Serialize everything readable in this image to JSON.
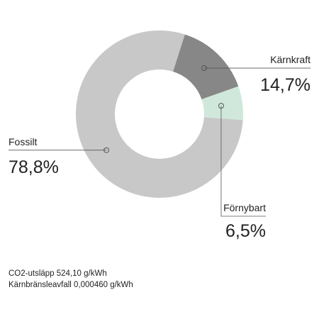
{
  "chart_data": {
    "type": "pie",
    "donut": true,
    "slices": [
      {
        "label": "Fossilt",
        "value": 78.8,
        "display": "78,8%",
        "color": "#c8c8c8"
      },
      {
        "label": "Kärnkraft",
        "value": 14.7,
        "display": "14,7%",
        "color": "#878787"
      },
      {
        "label": "Förnybart",
        "value": 6.5,
        "display": "6,5%",
        "color": "#cfe8db"
      }
    ],
    "start_angle_deg": 94,
    "direction": "clockwise"
  },
  "footer": {
    "co2": "CO2-utsläpp 524,10 g/kWh",
    "waste": "Kärnbränsleavfall 0,000460 g/kWh"
  }
}
